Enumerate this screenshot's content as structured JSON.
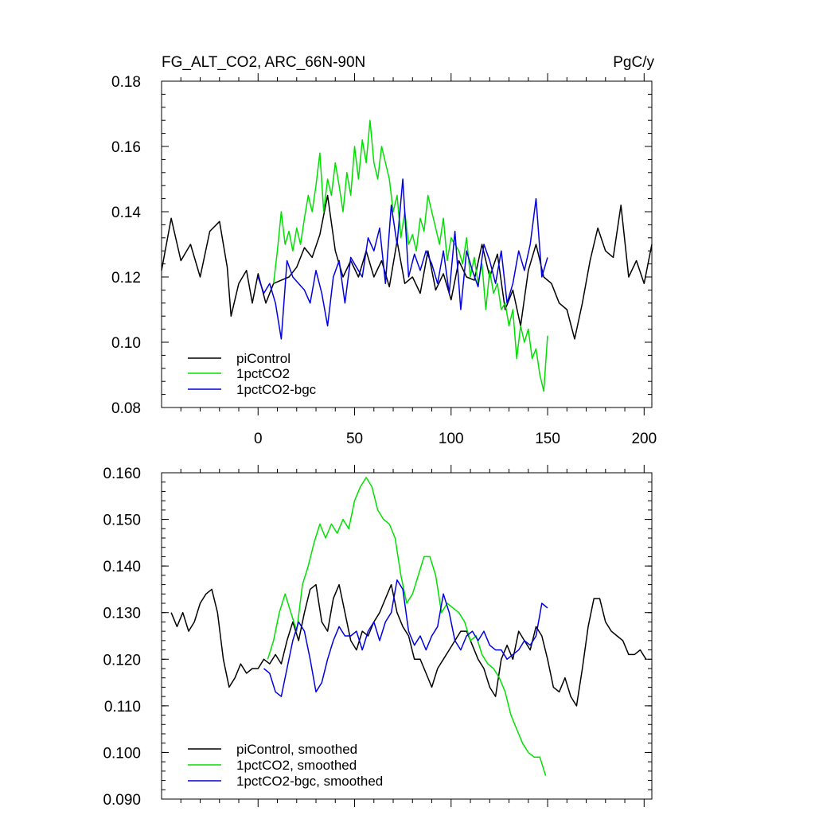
{
  "chart_data": [
    {
      "type": "line",
      "title": "FG_ALT_CO2, ARC_66N-90N",
      "units": "PgC/y",
      "xlim": [
        -50,
        204
      ],
      "ylim": [
        0.08,
        0.18
      ],
      "xticks": [
        0,
        50,
        100,
        150,
        200
      ],
      "xtick_labels": [
        "0",
        "50",
        "100",
        "150",
        "200"
      ],
      "yticks": [
        0.08,
        0.1,
        0.12,
        0.14,
        0.16,
        0.18
      ],
      "ytick_labels": [
        "0.08",
        "0.10",
        "0.12",
        "0.14",
        "0.16",
        "0.18"
      ],
      "legend": "bottom-left",
      "series": [
        {
          "name": "piControl",
          "color": "#000000",
          "x": [
            -50,
            -45,
            -40,
            -35,
            -30,
            -25,
            -20,
            -16,
            -14,
            -10,
            -6,
            -3,
            0,
            4,
            8,
            12,
            16,
            20,
            24,
            28,
            32,
            36,
            40,
            44,
            48,
            52,
            56,
            60,
            64,
            68,
            72,
            76,
            80,
            84,
            88,
            92,
            96,
            100,
            104,
            108,
            112,
            116,
            120,
            124,
            128,
            132,
            136,
            140,
            144,
            148,
            152,
            156,
            160,
            164,
            168,
            172,
            176,
            180,
            184,
            188,
            192,
            196,
            200,
            204
          ],
          "values": [
            0.122,
            0.138,
            0.125,
            0.13,
            0.12,
            0.134,
            0.137,
            0.123,
            0.108,
            0.118,
            0.122,
            0.112,
            0.121,
            0.112,
            0.118,
            0.119,
            0.12,
            0.123,
            0.129,
            0.126,
            0.133,
            0.145,
            0.128,
            0.12,
            0.125,
            0.12,
            0.128,
            0.12,
            0.125,
            0.117,
            0.131,
            0.118,
            0.12,
            0.115,
            0.128,
            0.116,
            0.121,
            0.113,
            0.125,
            0.12,
            0.119,
            0.13,
            0.12,
            0.127,
            0.11,
            0.116,
            0.105,
            0.122,
            0.13,
            0.12,
            0.118,
            0.112,
            0.11,
            0.101,
            0.112,
            0.125,
            0.135,
            0.128,
            0.126,
            0.142,
            0.12,
            0.125,
            0.118,
            0.13
          ]
        },
        {
          "name": "1pctCO2",
          "color": "#00e000",
          "x": [
            8,
            10,
            12,
            14,
            16,
            18,
            20,
            22,
            24,
            26,
            28,
            30,
            32,
            34,
            36,
            38,
            40,
            42,
            44,
            46,
            48,
            50,
            52,
            54,
            56,
            58,
            60,
            62,
            64,
            66,
            68,
            70,
            72,
            74,
            76,
            78,
            80,
            82,
            84,
            86,
            88,
            90,
            92,
            94,
            96,
            98,
            100,
            102,
            104,
            106,
            108,
            110,
            112,
            114,
            116,
            118,
            120,
            122,
            124,
            126,
            128,
            130,
            132,
            134,
            136,
            138,
            140,
            142,
            144,
            146,
            148,
            150
          ],
          "values": [
            0.118,
            0.128,
            0.14,
            0.13,
            0.134,
            0.128,
            0.135,
            0.13,
            0.138,
            0.145,
            0.14,
            0.148,
            0.158,
            0.14,
            0.15,
            0.145,
            0.155,
            0.148,
            0.14,
            0.152,
            0.145,
            0.16,
            0.15,
            0.162,
            0.155,
            0.168,
            0.155,
            0.15,
            0.16,
            0.155,
            0.15,
            0.14,
            0.145,
            0.132,
            0.14,
            0.13,
            0.133,
            0.128,
            0.138,
            0.134,
            0.145,
            0.14,
            0.135,
            0.13,
            0.138,
            0.125,
            0.132,
            0.13,
            0.128,
            0.124,
            0.132,
            0.12,
            0.126,
            0.118,
            0.124,
            0.11,
            0.122,
            0.115,
            0.118,
            0.11,
            0.112,
            0.105,
            0.11,
            0.095,
            0.105,
            0.1,
            0.104,
            0.095,
            0.098,
            0.09,
            0.085,
            0.102
          ]
        },
        {
          "name": "1pctCO2-bgc",
          "color": "#0000e0",
          "x": [
            0,
            3,
            6,
            9,
            12,
            15,
            18,
            21,
            24,
            27,
            30,
            33,
            36,
            39,
            42,
            45,
            48,
            51,
            54,
            57,
            60,
            63,
            66,
            69,
            72,
            75,
            78,
            81,
            84,
            87,
            90,
            93,
            96,
            99,
            102,
            105,
            108,
            111,
            114,
            117,
            120,
            123,
            126,
            129,
            132,
            135,
            138,
            141,
            144,
            147,
            150
          ],
          "values": [
            0.12,
            0.115,
            0.118,
            0.112,
            0.101,
            0.125,
            0.12,
            0.118,
            0.116,
            0.112,
            0.122,
            0.115,
            0.105,
            0.12,
            0.125,
            0.112,
            0.126,
            0.123,
            0.12,
            0.132,
            0.128,
            0.135,
            0.118,
            0.142,
            0.13,
            0.15,
            0.12,
            0.127,
            0.122,
            0.128,
            0.124,
            0.118,
            0.128,
            0.115,
            0.134,
            0.11,
            0.128,
            0.122,
            0.117,
            0.13,
            0.125,
            0.118,
            0.128,
            0.112,
            0.118,
            0.128,
            0.122,
            0.13,
            0.144,
            0.12,
            0.126
          ]
        }
      ]
    },
    {
      "type": "line",
      "title": "",
      "xlim": [
        -50,
        204
      ],
      "ylim": [
        0.09,
        0.16
      ],
      "xticks": [
        0,
        50,
        100,
        150,
        200
      ],
      "yticks": [
        0.09,
        0.1,
        0.11,
        0.12,
        0.13,
        0.14,
        0.15,
        0.16
      ],
      "ytick_labels": [
        "0.090",
        "0.100",
        "0.110",
        "0.120",
        "0.130",
        "0.140",
        "0.150",
        "0.160"
      ],
      "legend": "bottom-left",
      "series": [
        {
          "name": "piControl, smoothed",
          "color": "#000000",
          "x": [
            -45,
            -42,
            -39,
            -36,
            -33,
            -30,
            -27,
            -24,
            -21,
            -18,
            -15,
            -12,
            -9,
            -6,
            -3,
            0,
            3,
            6,
            9,
            12,
            15,
            18,
            21,
            24,
            27,
            30,
            33,
            36,
            39,
            42,
            45,
            48,
            51,
            54,
            57,
            60,
            63,
            66,
            69,
            72,
            75,
            78,
            81,
            84,
            87,
            90,
            93,
            96,
            99,
            102,
            105,
            108,
            111,
            114,
            117,
            120,
            123,
            126,
            129,
            132,
            135,
            138,
            141,
            144,
            147,
            150,
            153,
            156,
            159,
            162,
            165,
            168,
            171,
            174,
            177,
            180,
            183,
            186,
            189,
            192,
            195,
            198,
            201
          ],
          "values": [
            0.13,
            0.127,
            0.13,
            0.126,
            0.128,
            0.132,
            0.134,
            0.135,
            0.13,
            0.12,
            0.114,
            0.116,
            0.119,
            0.117,
            0.118,
            0.118,
            0.12,
            0.119,
            0.121,
            0.119,
            0.124,
            0.128,
            0.124,
            0.13,
            0.135,
            0.136,
            0.128,
            0.126,
            0.133,
            0.136,
            0.13,
            0.124,
            0.122,
            0.126,
            0.125,
            0.128,
            0.13,
            0.133,
            0.136,
            0.13,
            0.127,
            0.125,
            0.12,
            0.12,
            0.117,
            0.114,
            0.118,
            0.12,
            0.122,
            0.124,
            0.126,
            0.126,
            0.123,
            0.12,
            0.118,
            0.114,
            0.112,
            0.12,
            0.123,
            0.12,
            0.126,
            0.124,
            0.122,
            0.127,
            0.125,
            0.12,
            0.114,
            0.113,
            0.116,
            0.112,
            0.11,
            0.118,
            0.127,
            0.133,
            0.133,
            0.128,
            0.126,
            0.125,
            0.124,
            0.121,
            0.121,
            0.122,
            0.12
          ]
        },
        {
          "name": "1pctCO2, smoothed",
          "color": "#00e000",
          "x": [
            5,
            8,
            11,
            14,
            17,
            20,
            23,
            26,
            29,
            32,
            35,
            38,
            41,
            44,
            47,
            50,
            53,
            56,
            59,
            62,
            65,
            68,
            71,
            74,
            77,
            80,
            83,
            86,
            89,
            92,
            95,
            98,
            101,
            104,
            107,
            110,
            113,
            116,
            119,
            122,
            125,
            128,
            131,
            134,
            137,
            140,
            143,
            146,
            149
          ],
          "values": [
            0.12,
            0.124,
            0.13,
            0.134,
            0.13,
            0.126,
            0.136,
            0.14,
            0.145,
            0.149,
            0.146,
            0.149,
            0.147,
            0.15,
            0.148,
            0.154,
            0.157,
            0.159,
            0.157,
            0.152,
            0.15,
            0.149,
            0.146,
            0.138,
            0.132,
            0.134,
            0.138,
            0.142,
            0.142,
            0.138,
            0.13,
            0.132,
            0.131,
            0.13,
            0.128,
            0.124,
            0.125,
            0.121,
            0.119,
            0.118,
            0.116,
            0.113,
            0.108,
            0.105,
            0.102,
            0.1,
            0.099,
            0.099,
            0.095
          ]
        },
        {
          "name": "1pctCO2-bgc, smoothed",
          "color": "#0000e0",
          "x": [
            3,
            6,
            9,
            12,
            15,
            18,
            21,
            24,
            27,
            30,
            33,
            36,
            39,
            42,
            45,
            48,
            51,
            54,
            57,
            60,
            63,
            66,
            69,
            72,
            75,
            78,
            81,
            84,
            87,
            90,
            93,
            96,
            99,
            102,
            105,
            108,
            111,
            114,
            117,
            120,
            123,
            126,
            129,
            132,
            135,
            138,
            141,
            144,
            147,
            150
          ],
          "values": [
            0.118,
            0.117,
            0.113,
            0.112,
            0.118,
            0.124,
            0.128,
            0.126,
            0.12,
            0.113,
            0.115,
            0.12,
            0.124,
            0.127,
            0.125,
            0.125,
            0.126,
            0.122,
            0.126,
            0.128,
            0.124,
            0.128,
            0.13,
            0.137,
            0.135,
            0.126,
            0.123,
            0.125,
            0.122,
            0.125,
            0.127,
            0.134,
            0.13,
            0.124,
            0.122,
            0.125,
            0.126,
            0.124,
            0.126,
            0.123,
            0.122,
            0.122,
            0.12,
            0.121,
            0.122,
            0.124,
            0.123,
            0.125,
            0.132,
            0.131
          ]
        }
      ]
    }
  ]
}
